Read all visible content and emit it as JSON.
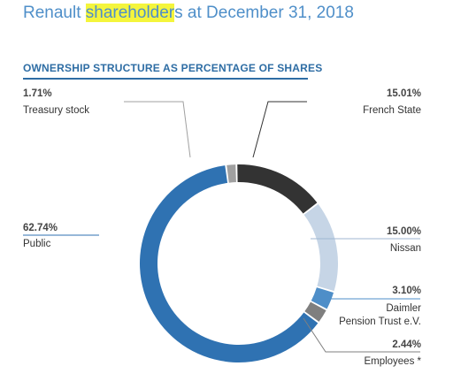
{
  "header": {
    "title_prefix": "Renault ",
    "title_highlight": "shareholder",
    "title_suffix": "s at December 31, 2018",
    "highlight_color": "#f4f53c"
  },
  "section": {
    "heading": "OWNERSHIP STRUCTURE AS PERCENTAGE OF SHARES"
  },
  "chart_data": {
    "type": "pie",
    "variant": "donut",
    "title": "OWNERSHIP STRUCTURE AS PERCENTAGE OF SHARES",
    "legend": "none",
    "slices": [
      {
        "label": "French State",
        "value": 15.01,
        "display": "15.01%",
        "color": "#333333"
      },
      {
        "label": "Nissan",
        "value": 15.0,
        "display": "15.00%",
        "color": "#c6d5e6"
      },
      {
        "label": "Daimler Pension Trust e.V.",
        "display_label": [
          "Daimler",
          "Pension Trust e.V."
        ],
        "value": 3.1,
        "display": "3.10%",
        "color": "#4e8ec8"
      },
      {
        "label": "Employees *",
        "value": 2.44,
        "display": "2.44%",
        "color": "#7f7f7f"
      },
      {
        "label": "Public",
        "value": 62.74,
        "display": "62.74%",
        "color": "#2f72b2"
      },
      {
        "label": "Treasury stock",
        "value": 1.71,
        "display": "1.71%",
        "color": "#a0a0a0"
      }
    ]
  }
}
